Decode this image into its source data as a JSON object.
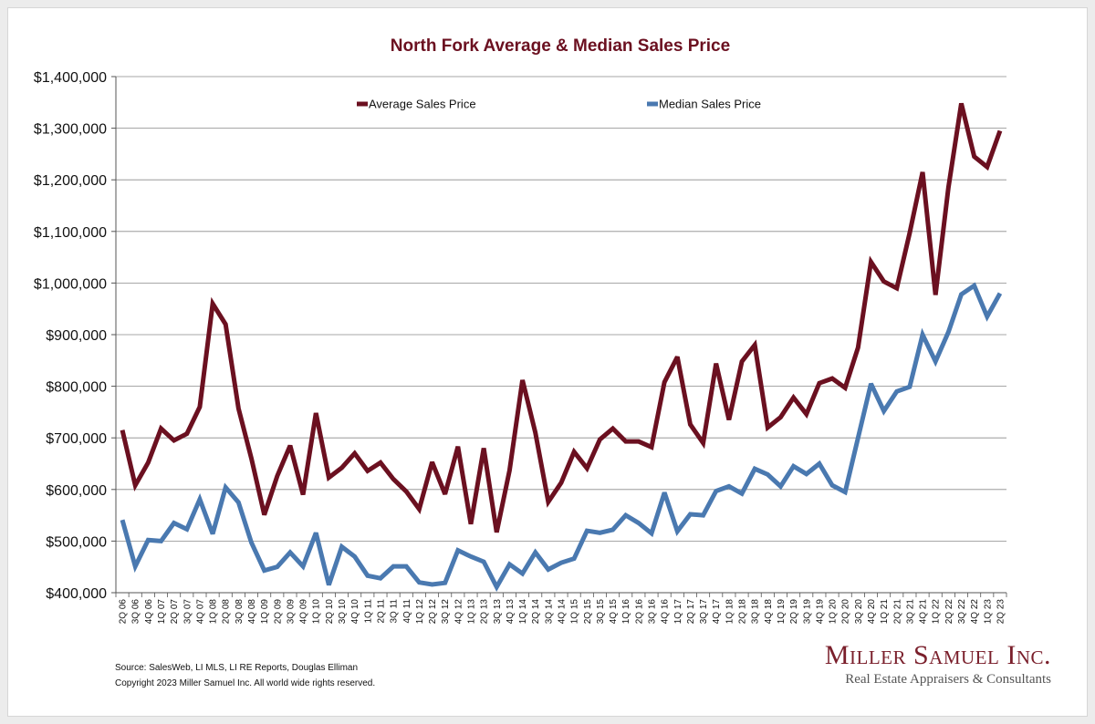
{
  "chart_data": {
    "type": "line",
    "title": "North Fork Average & Median Sales Price",
    "xlabel": "",
    "ylabel": "",
    "ylim": [
      400000,
      1400000
    ],
    "yticks": [
      400000,
      500000,
      600000,
      700000,
      800000,
      900000,
      1000000,
      1100000,
      1200000,
      1300000,
      1400000
    ],
    "ytick_labels": [
      "$400,000",
      "$500,000",
      "$600,000",
      "$700,000",
      "$800,000",
      "$900,000",
      "$1,000,000",
      "$1,100,000",
      "$1,200,000",
      "$1,300,000",
      "$1,400,000"
    ],
    "grid": true,
    "legend_position": "top",
    "categories": [
      "2Q 06",
      "3Q 06",
      "4Q 06",
      "1Q 07",
      "2Q 07",
      "3Q 07",
      "4Q 07",
      "1Q 08",
      "2Q 08",
      "3Q 08",
      "4Q 08",
      "1Q 09",
      "2Q 09",
      "3Q 09",
      "4Q 09",
      "1Q 10",
      "2Q 10",
      "3Q 10",
      "4Q 10",
      "1Q 11",
      "2Q 11",
      "3Q 11",
      "4Q 11",
      "1Q 12",
      "2Q 12",
      "3Q 12",
      "4Q 12",
      "1Q 13",
      "2Q 13",
      "3Q 13",
      "4Q 13",
      "1Q 14",
      "2Q 14",
      "3Q 14",
      "4Q 14",
      "1Q 15",
      "2Q 15",
      "3Q 15",
      "4Q 15",
      "1Q 16",
      "2Q 16",
      "3Q 16",
      "4Q 16",
      "1Q 17",
      "2Q 17",
      "3Q 17",
      "4Q 17",
      "1Q 18",
      "2Q 18",
      "3Q 18",
      "4Q 18",
      "1Q 19",
      "2Q 19",
      "3Q 19",
      "4Q 19",
      "1Q 20",
      "2Q 20",
      "3Q 20",
      "4Q 20",
      "1Q 21",
      "2Q 21",
      "3Q 21",
      "4Q 21",
      "1Q 22",
      "2Q 22",
      "3Q 22",
      "4Q 22",
      "1Q 23",
      "2Q 23"
    ],
    "series": [
      {
        "name": "Average Sales Price",
        "color": "#6b1020",
        "values": [
          715000,
          608000,
          652000,
          718000,
          695000,
          708000,
          760000,
          960000,
          920000,
          757000,
          660000,
          551000,
          626000,
          685000,
          590000,
          748000,
          623000,
          642000,
          670000,
          636000,
          652000,
          620000,
          596000,
          562000,
          653000,
          591000,
          683000,
          533000,
          680000,
          517000,
          637000,
          812000,
          710000,
          576000,
          613000,
          673000,
          641000,
          697000,
          718000,
          693000,
          693000,
          682000,
          808000,
          857000,
          726000,
          690000,
          844000,
          735000,
          848000,
          880000,
          720000,
          740000,
          778000,
          746000,
          806000,
          815000,
          797000,
          875000,
          1041000,
          1003000,
          990000,
          1097000,
          1215000,
          977000,
          1185000,
          1348000,
          1245000,
          1225000,
          1295000
        ]
      },
      {
        "name": "Median Sales Price",
        "color": "#4a79b0",
        "values": [
          541000,
          451000,
          502000,
          500000,
          535000,
          523000,
          581000,
          514000,
          604000,
          575000,
          497000,
          443000,
          450000,
          478000,
          451000,
          516000,
          415000,
          489000,
          470000,
          433000,
          428000,
          451000,
          451000,
          420000,
          416000,
          419000,
          482000,
          470000,
          460000,
          411000,
          455000,
          437000,
          478000,
          445000,
          458000,
          466000,
          520000,
          516000,
          522000,
          550000,
          535000,
          515000,
          594000,
          519000,
          552000,
          550000,
          597000,
          606000,
          592000,
          640000,
          629000,
          606000,
          645000,
          630000,
          650000,
          608000,
          595000,
          700000,
          805000,
          752000,
          790000,
          799000,
          900000,
          848000,
          905000,
          978000,
          995000,
          935000,
          980000
        ]
      }
    ]
  },
  "footer": {
    "source": "Source: SalesWeb, LI MLS, LI RE Reports, Douglas Elliman",
    "copyright": "Copyright 2023 Miller Samuel Inc.  All world wide rights reserved."
  },
  "brand": {
    "name": "Miller Samuel Inc.",
    "tagline": "Real Estate Appraisers & Consultants"
  }
}
